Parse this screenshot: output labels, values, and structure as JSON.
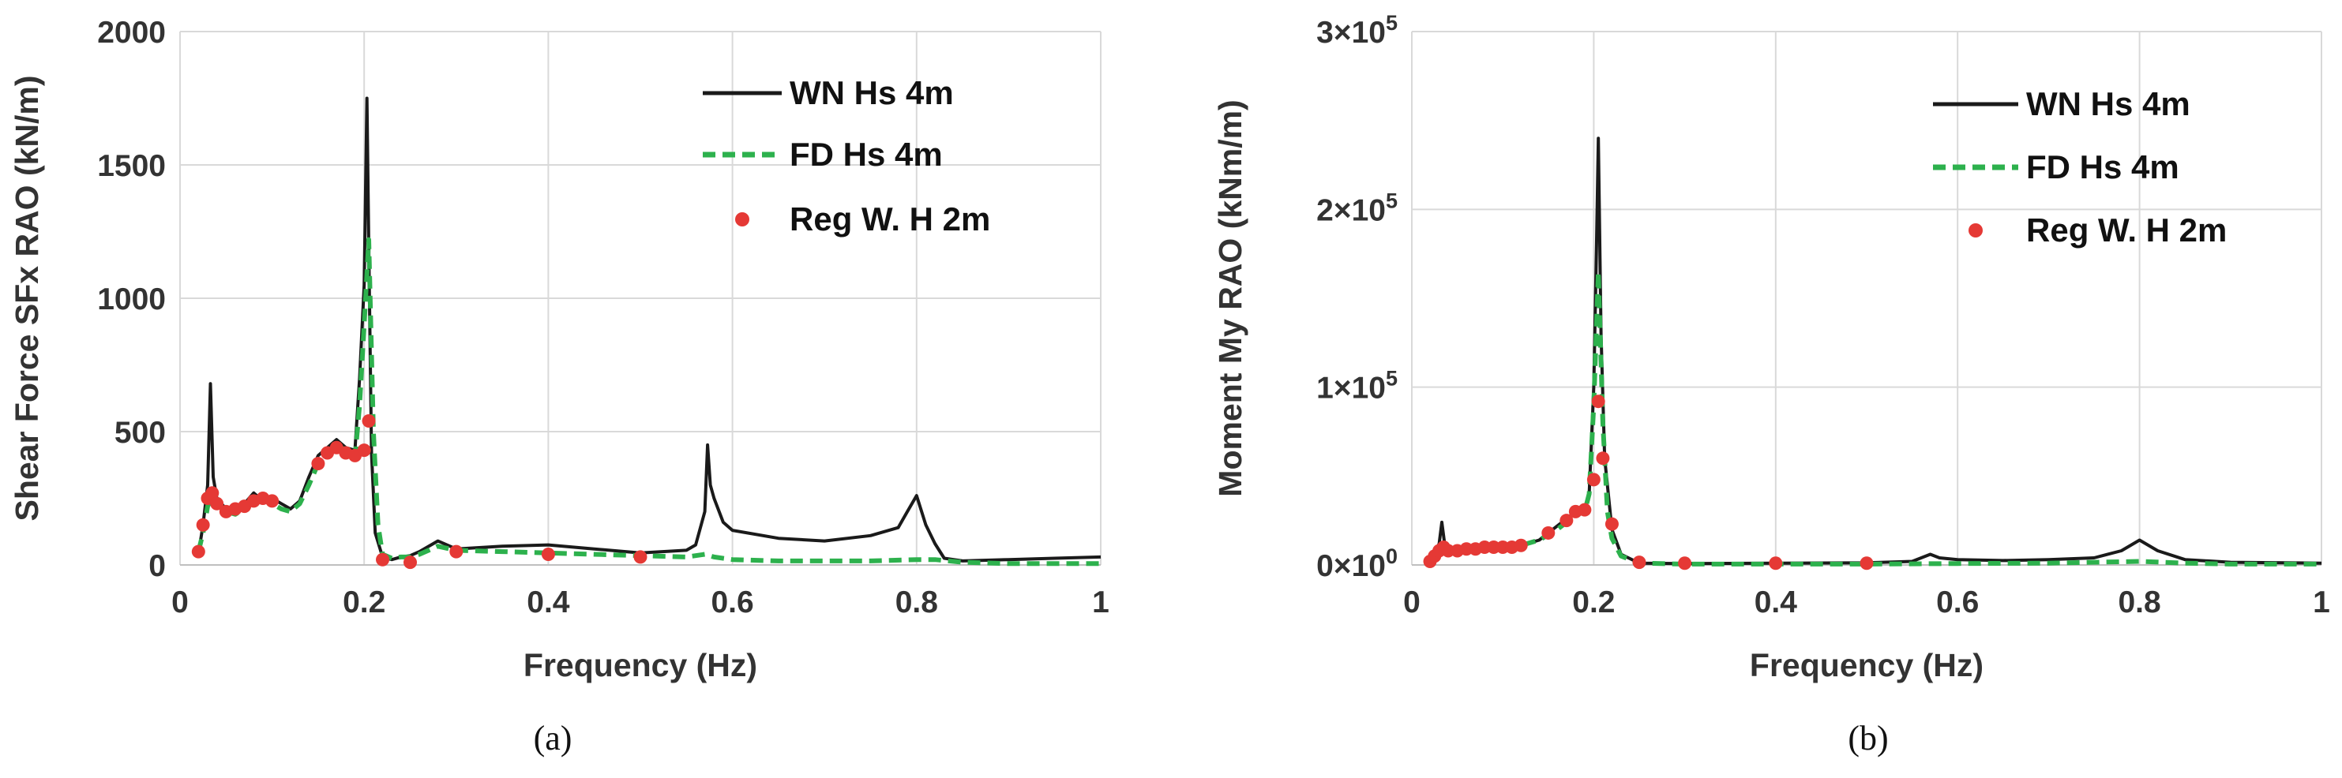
{
  "colors": {
    "wn": "#1a1a1a",
    "fd": "#2db14d",
    "reg": "#e53935",
    "grid": "#d9d9d9"
  },
  "chart_data": [
    {
      "id": "a",
      "type": "line",
      "caption": "(a)",
      "xlabel": "Frequency (Hz)",
      "ylabel": "Shear Force SFx RAO (kN/m)",
      "xlim": [
        0,
        1
      ],
      "ylim": [
        0,
        2000
      ],
      "xticks": [
        0,
        0.2,
        0.4,
        0.6,
        0.8,
        1
      ],
      "xtick_labels": [
        "0",
        "0.2",
        "0.4",
        "0.6",
        "0.8",
        "1"
      ],
      "yticks": [
        0,
        500,
        1000,
        1500,
        2000
      ],
      "ytick_labels": [
        "0",
        "500",
        "1000",
        "1500",
        "2000"
      ],
      "grid": true,
      "legend_position": "top-right",
      "series": [
        {
          "name": "WN Hs 4m",
          "style": "line",
          "x": [
            0.02,
            0.025,
            0.03,
            0.033,
            0.036,
            0.04,
            0.05,
            0.06,
            0.07,
            0.08,
            0.09,
            0.1,
            0.11,
            0.12,
            0.13,
            0.14,
            0.15,
            0.16,
            0.17,
            0.18,
            0.19,
            0.195,
            0.2,
            0.203,
            0.205,
            0.208,
            0.212,
            0.22,
            0.23,
            0.24,
            0.25,
            0.26,
            0.28,
            0.3,
            0.35,
            0.4,
            0.45,
            0.5,
            0.55,
            0.56,
            0.57,
            0.573,
            0.576,
            0.58,
            0.59,
            0.6,
            0.65,
            0.7,
            0.75,
            0.78,
            0.79,
            0.8,
            0.81,
            0.82,
            0.83,
            0.85,
            0.9,
            0.95,
            1.0
          ],
          "y": [
            40,
            150,
            300,
            680,
            330,
            250,
            210,
            190,
            230,
            270,
            240,
            250,
            230,
            210,
            240,
            330,
            410,
            440,
            470,
            440,
            430,
            700,
            1050,
            1750,
            1200,
            420,
            120,
            30,
            20,
            30,
            35,
            50,
            90,
            60,
            70,
            75,
            60,
            45,
            55,
            75,
            200,
            450,
            300,
            250,
            160,
            130,
            100,
            90,
            110,
            140,
            200,
            260,
            150,
            80,
            25,
            15,
            20,
            25,
            30
          ]
        },
        {
          "name": "FD Hs 4m",
          "style": "dashed",
          "x": [
            0.02,
            0.025,
            0.03,
            0.035,
            0.04,
            0.05,
            0.06,
            0.07,
            0.08,
            0.09,
            0.1,
            0.11,
            0.12,
            0.13,
            0.14,
            0.15,
            0.16,
            0.17,
            0.18,
            0.19,
            0.195,
            0.2,
            0.205,
            0.21,
            0.215,
            0.22,
            0.23,
            0.24,
            0.25,
            0.26,
            0.28,
            0.3,
            0.35,
            0.4,
            0.45,
            0.5,
            0.55,
            0.57,
            0.58,
            0.6,
            0.65,
            0.7,
            0.75,
            0.8,
            0.82,
            0.85,
            0.9,
            1.0
          ],
          "y": [
            50,
            120,
            220,
            260,
            240,
            200,
            190,
            210,
            240,
            250,
            230,
            210,
            200,
            230,
            300,
            380,
            420,
            450,
            430,
            400,
            600,
            900,
            1220,
            500,
            150,
            40,
            25,
            30,
            30,
            40,
            70,
            55,
            50,
            45,
            40,
            35,
            30,
            40,
            30,
            20,
            15,
            15,
            15,
            20,
            20,
            10,
            5,
            5
          ]
        },
        {
          "name": "Reg W. H 2m",
          "style": "markers",
          "x": [
            0.02,
            0.025,
            0.03,
            0.035,
            0.04,
            0.05,
            0.06,
            0.07,
            0.08,
            0.09,
            0.1,
            0.15,
            0.16,
            0.17,
            0.18,
            0.19,
            0.2,
            0.205,
            0.22,
            0.25,
            0.3,
            0.4,
            0.5
          ],
          "y": [
            50,
            150,
            250,
            270,
            230,
            200,
            210,
            220,
            240,
            250,
            240,
            380,
            420,
            440,
            420,
            410,
            430,
            540,
            20,
            10,
            50,
            40,
            30
          ]
        }
      ]
    },
    {
      "id": "b",
      "type": "line",
      "caption": "(b)",
      "xlabel": "Frequency (Hz)",
      "ylabel": "Moment My RAO (kNm/m)",
      "xlim": [
        0,
        1
      ],
      "ylim": [
        0,
        300000
      ],
      "xticks": [
        0,
        0.2,
        0.4,
        0.6,
        0.8,
        1
      ],
      "xtick_labels": [
        "0",
        "0.2",
        "0.4",
        "0.6",
        "0.8",
        "1"
      ],
      "yticks": [
        0,
        100000,
        200000,
        300000
      ],
      "ytick_labels": [
        {
          "m": "0",
          "e": "0"
        },
        {
          "m": "1",
          "e": "5"
        },
        {
          "m": "2",
          "e": "5"
        },
        {
          "m": "3",
          "e": "5"
        }
      ],
      "grid": true,
      "legend_position": "top-right",
      "series": [
        {
          "name": "WN Hs 4m",
          "style": "line",
          "x": [
            0.02,
            0.025,
            0.03,
            0.033,
            0.036,
            0.04,
            0.06,
            0.08,
            0.1,
            0.12,
            0.14,
            0.16,
            0.18,
            0.19,
            0.195,
            0.2,
            0.203,
            0.205,
            0.208,
            0.212,
            0.22,
            0.23,
            0.25,
            0.3,
            0.4,
            0.5,
            0.55,
            0.57,
            0.58,
            0.6,
            0.65,
            0.7,
            0.75,
            0.78,
            0.8,
            0.82,
            0.85,
            0.9,
            1.0
          ],
          "y": [
            2000,
            6000,
            12000,
            24000,
            12000,
            8000,
            8000,
            9000,
            10000,
            11000,
            14000,
            22000,
            30000,
            32000,
            40000,
            100000,
            180000,
            240000,
            130000,
            60000,
            20000,
            6000,
            1000,
            800,
            1000,
            1200,
            2000,
            6000,
            4000,
            3000,
            2500,
            3000,
            4000,
            8000,
            14000,
            8000,
            3000,
            1500,
            1000
          ]
        },
        {
          "name": "FD Hs 4m",
          "style": "dashed",
          "x": [
            0.02,
            0.03,
            0.04,
            0.06,
            0.08,
            0.1,
            0.12,
            0.14,
            0.16,
            0.18,
            0.19,
            0.195,
            0.2,
            0.205,
            0.21,
            0.215,
            0.22,
            0.23,
            0.25,
            0.3,
            0.4,
            0.5,
            0.6,
            0.7,
            0.8,
            0.85,
            0.9,
            1.0
          ],
          "y": [
            2000,
            8000,
            7000,
            8000,
            9000,
            10000,
            11000,
            14000,
            20000,
            28000,
            30000,
            40000,
            90000,
            165000,
            80000,
            30000,
            15000,
            5000,
            1000,
            500,
            500,
            500,
            800,
            1000,
            2000,
            1000,
            500,
            500
          ]
        },
        {
          "name": "Reg W. H 2m",
          "style": "markers",
          "x": [
            0.02,
            0.025,
            0.03,
            0.035,
            0.04,
            0.05,
            0.06,
            0.07,
            0.08,
            0.09,
            0.1,
            0.11,
            0.12,
            0.15,
            0.17,
            0.18,
            0.19,
            0.2,
            0.205,
            0.21,
            0.22,
            0.25,
            0.3,
            0.4,
            0.5
          ],
          "y": [
            2000,
            5000,
            8000,
            10000,
            8000,
            8000,
            9000,
            9000,
            10000,
            10000,
            10000,
            10000,
            11000,
            18000,
            25000,
            30000,
            31000,
            48000,
            92000,
            60000,
            23000,
            1500,
            1000,
            1000,
            1000
          ]
        }
      ]
    }
  ]
}
